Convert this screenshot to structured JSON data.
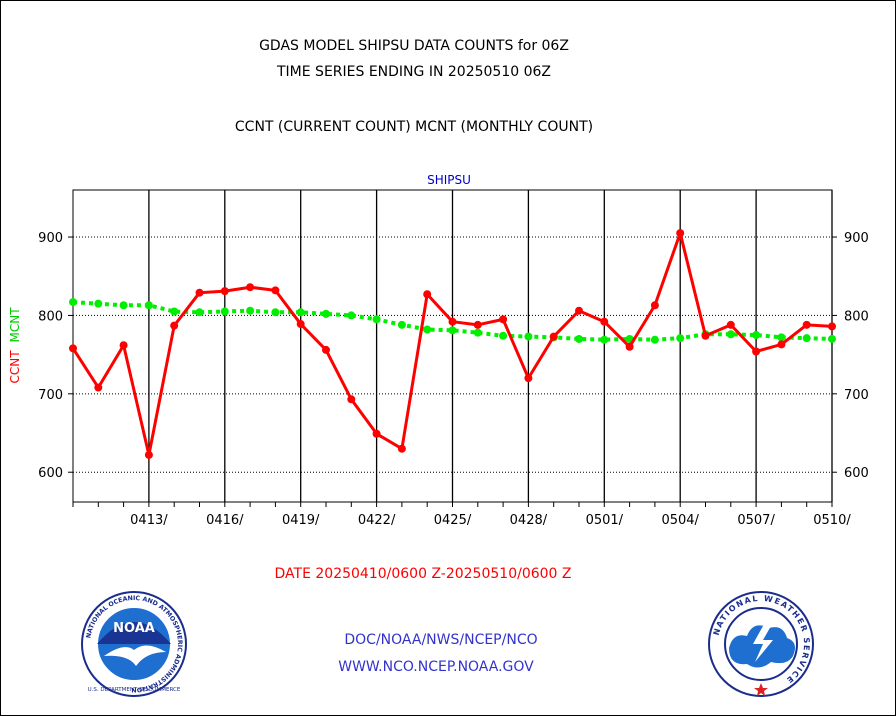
{
  "header": {
    "title_line1": "GDAS MODEL SHIPSU DATA COUNTS for 06Z",
    "title_line2": "TIME SERIES ENDING IN 20250510 06Z",
    "subtitle": "CCNT (CURRENT COUNT) MCNT (MONTHLY COUNT)"
  },
  "chart_data": {
    "type": "line",
    "title": "SHIPSU",
    "ylabel_ccnt": "CCNT",
    "ylabel_mcnt": "MCNT",
    "xlabel": "DATE 20250410/0600 Z-20250510/0600 Z",
    "ylim": [
      562,
      960
    ],
    "xlim": [
      0,
      30
    ],
    "y_ticks": [
      600,
      700,
      800,
      900
    ],
    "x_ticks": [
      {
        "x": 3,
        "label": "0413/"
      },
      {
        "x": 6,
        "label": "0416/"
      },
      {
        "x": 9,
        "label": "0419/"
      },
      {
        "x": 12,
        "label": "0422/"
      },
      {
        "x": 15,
        "label": "0425/"
      },
      {
        "x": 18,
        "label": "0428/"
      },
      {
        "x": 21,
        "label": "0501/"
      },
      {
        "x": 24,
        "label": "0504/"
      },
      {
        "x": 27,
        "label": "0507/"
      },
      {
        "x": 30,
        "label": "0510/"
      }
    ],
    "grid": true,
    "series": [
      {
        "name": "CCNT",
        "color": "#ff0000",
        "style": "solid",
        "values": [
          758,
          708,
          762,
          622,
          787,
          829,
          831,
          836,
          832,
          789,
          756,
          693,
          649,
          630,
          827,
          792,
          788,
          795,
          720,
          773,
          806,
          792,
          760,
          813,
          905,
          774,
          788,
          754,
          763,
          788,
          786
        ]
      },
      {
        "name": "MCNT",
        "color": "#00ee00",
        "style": "dashed",
        "values": [
          817,
          815,
          813,
          813,
          805,
          804,
          805,
          806,
          804,
          804,
          802,
          800,
          795,
          788,
          782,
          781,
          778,
          774,
          773,
          772,
          770,
          769,
          770,
          769,
          771,
          776,
          776,
          775,
          772,
          771,
          770
        ]
      }
    ]
  },
  "footer": {
    "line1": "DOC/NOAA/NWS/NCEP/NCO",
    "line2": "WWW.NCO.NCEP.NOAA.GOV",
    "noaa_logo_text": "NOAA",
    "noaa_ring_text": "NATIONAL OCEANIC AND ATMOSPHERIC ADMINISTRATION",
    "noaa_bottom_text": "U.S. DEPARTMENT OF COMMERCE",
    "nws_ring_text": "NATIONAL WEATHER SERVICE"
  }
}
